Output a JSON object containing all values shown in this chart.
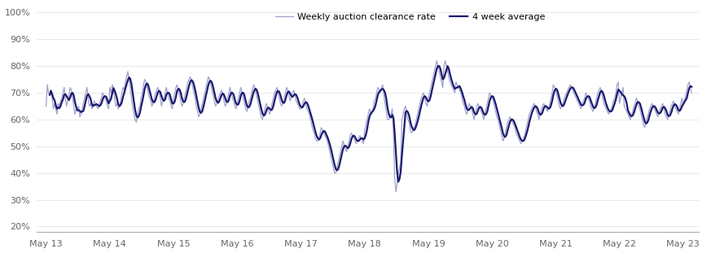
{
  "legend_weekly": "Weekly auction clearance rate",
  "legend_4week": "4 week average",
  "color_weekly": "#a0a0d0",
  "color_4week": "#1a1a6e",
  "lw_weekly": 0.9,
  "lw_4week": 1.6,
  "ylim": [
    0.18,
    1.03
  ],
  "yticks": [
    0.2,
    0.3,
    0.4,
    0.5,
    0.6,
    0.7,
    0.8,
    0.9,
    1.0
  ],
  "background_color": "#ffffff",
  "weekly_data": [
    0.65,
    0.73,
    0.7,
    0.69,
    0.71,
    0.68,
    0.64,
    0.66,
    0.64,
    0.62,
    0.66,
    0.65,
    0.67,
    0.68,
    0.7,
    0.72,
    0.68,
    0.65,
    0.67,
    0.69,
    0.72,
    0.71,
    0.68,
    0.65,
    0.62,
    0.64,
    0.63,
    0.65,
    0.61,
    0.62,
    0.64,
    0.66,
    0.68,
    0.7,
    0.72,
    0.68,
    0.65,
    0.66,
    0.64,
    0.65,
    0.67,
    0.66,
    0.65,
    0.64,
    0.65,
    0.67,
    0.68,
    0.7,
    0.69,
    0.68,
    0.67,
    0.65,
    0.64,
    0.72,
    0.7,
    0.73,
    0.72,
    0.68,
    0.65,
    0.66,
    0.64,
    0.65,
    0.67,
    0.7,
    0.72,
    0.71,
    0.74,
    0.76,
    0.78,
    0.75,
    0.72,
    0.68,
    0.65,
    0.62,
    0.6,
    0.59,
    0.62,
    0.64,
    0.65,
    0.68,
    0.7,
    0.73,
    0.75,
    0.74,
    0.72,
    0.7,
    0.68,
    0.67,
    0.65,
    0.66,
    0.68,
    0.7,
    0.71,
    0.72,
    0.7,
    0.68,
    0.65,
    0.67,
    0.68,
    0.7,
    0.72,
    0.7,
    0.68,
    0.67,
    0.65,
    0.64,
    0.68,
    0.7,
    0.72,
    0.73,
    0.71,
    0.69,
    0.67,
    0.65,
    0.66,
    0.68,
    0.7,
    0.72,
    0.74,
    0.75,
    0.76,
    0.74,
    0.72,
    0.7,
    0.68,
    0.65,
    0.63,
    0.61,
    0.62,
    0.64,
    0.66,
    0.68,
    0.7,
    0.72,
    0.74,
    0.76,
    0.75,
    0.73,
    0.71,
    0.69,
    0.67,
    0.65,
    0.66,
    0.67,
    0.69,
    0.7,
    0.71,
    0.69,
    0.67,
    0.65,
    0.66,
    0.68,
    0.7,
    0.72,
    0.7,
    0.68,
    0.67,
    0.65,
    0.64,
    0.66,
    0.68,
    0.7,
    0.72,
    0.7,
    0.68,
    0.66,
    0.64,
    0.63,
    0.65,
    0.67,
    0.68,
    0.7,
    0.72,
    0.73,
    0.71,
    0.69,
    0.67,
    0.65,
    0.63,
    0.61,
    0.6,
    0.62,
    0.64,
    0.66,
    0.65,
    0.63,
    0.62,
    0.64,
    0.66,
    0.68,
    0.7,
    0.71,
    0.72,
    0.7,
    0.68,
    0.66,
    0.65,
    0.66,
    0.68,
    0.7,
    0.72,
    0.71,
    0.69,
    0.67,
    0.68,
    0.7,
    0.71,
    0.69,
    0.67,
    0.66,
    0.65,
    0.64,
    0.64,
    0.65,
    0.67,
    0.68,
    0.66,
    0.64,
    0.63,
    0.62,
    0.6,
    0.58,
    0.56,
    0.55,
    0.53,
    0.52,
    0.52,
    0.53,
    0.55,
    0.57,
    0.56,
    0.55,
    0.54,
    0.53,
    0.52,
    0.5,
    0.48,
    0.46,
    0.44,
    0.42,
    0.4,
    0.4,
    0.42,
    0.44,
    0.46,
    0.48,
    0.5,
    0.52,
    0.5,
    0.49,
    0.48,
    0.5,
    0.52,
    0.54,
    0.55,
    0.54,
    0.53,
    0.52,
    0.51,
    0.52,
    0.53,
    0.54,
    0.53,
    0.52,
    0.51,
    0.56,
    0.58,
    0.6,
    0.62,
    0.64,
    0.63,
    0.62,
    0.64,
    0.67,
    0.68,
    0.7,
    0.72,
    0.71,
    0.7,
    0.72,
    0.73,
    0.69,
    0.66,
    0.63,
    0.6,
    0.6,
    0.61,
    0.62,
    0.64,
    0.55,
    0.38,
    0.33,
    0.36,
    0.4,
    0.42,
    0.44,
    0.6,
    0.62,
    0.64,
    0.65,
    0.62,
    0.6,
    0.59,
    0.56,
    0.55,
    0.56,
    0.57,
    0.58,
    0.6,
    0.62,
    0.64,
    0.66,
    0.68,
    0.69,
    0.7,
    0.68,
    0.66,
    0.65,
    0.68,
    0.7,
    0.72,
    0.74,
    0.76,
    0.78,
    0.8,
    0.82,
    0.8,
    0.78,
    0.76,
    0.74,
    0.72,
    0.8,
    0.82,
    0.8,
    0.78,
    0.76,
    0.74,
    0.73,
    0.72,
    0.71,
    0.7,
    0.74,
    0.73,
    0.72,
    0.71,
    0.7,
    0.68,
    0.66,
    0.65,
    0.63,
    0.62,
    0.64,
    0.66,
    0.65,
    0.64,
    0.62,
    0.6,
    0.62,
    0.64,
    0.66,
    0.65,
    0.64,
    0.63,
    0.62,
    0.6,
    0.62,
    0.64,
    0.66,
    0.68,
    0.7,
    0.69,
    0.68,
    0.67,
    0.65,
    0.63,
    0.61,
    0.6,
    0.58,
    0.56,
    0.54,
    0.52,
    0.53,
    0.55,
    0.57,
    0.59,
    0.6,
    0.61,
    0.6,
    0.59,
    0.58,
    0.57,
    0.55,
    0.54,
    0.53,
    0.52,
    0.51,
    0.52,
    0.53,
    0.54,
    0.56,
    0.58,
    0.6,
    0.62,
    0.63,
    0.64,
    0.65,
    0.66,
    0.65,
    0.63,
    0.62,
    0.6,
    0.62,
    0.64,
    0.65,
    0.66,
    0.65,
    0.64,
    0.63,
    0.64,
    0.66,
    0.68,
    0.7,
    0.73,
    0.72,
    0.71,
    0.69,
    0.67,
    0.65,
    0.64,
    0.65,
    0.66,
    0.68,
    0.69,
    0.7,
    0.71,
    0.72,
    0.73,
    0.72,
    0.71,
    0.7,
    0.69,
    0.68,
    0.67,
    0.66,
    0.65,
    0.64,
    0.66,
    0.67,
    0.68,
    0.7,
    0.69,
    0.68,
    0.67,
    0.65,
    0.64,
    0.63,
    0.65,
    0.66,
    0.68,
    0.7,
    0.71,
    0.72,
    0.7,
    0.68,
    0.66,
    0.65,
    0.64,
    0.63,
    0.62,
    0.63,
    0.64,
    0.65,
    0.67,
    0.68,
    0.7,
    0.73,
    0.74,
    0.66,
    0.68,
    0.7,
    0.72,
    0.65,
    0.64,
    0.63,
    0.62,
    0.61,
    0.6,
    0.62,
    0.63,
    0.65,
    0.66,
    0.68,
    0.67,
    0.65,
    0.64,
    0.62,
    0.6,
    0.58,
    0.57,
    0.59,
    0.61,
    0.62,
    0.64,
    0.65,
    0.66,
    0.65,
    0.64,
    0.63,
    0.62,
    0.61,
    0.63,
    0.64,
    0.65,
    0.66,
    0.64,
    0.62,
    0.61,
    0.6,
    0.62,
    0.63,
    0.65,
    0.66,
    0.67,
    0.65,
    0.64,
    0.63,
    0.62,
    0.64,
    0.66,
    0.68,
    0.65,
    0.67,
    0.69,
    0.71,
    0.73,
    0.74,
    0.72,
    0.7
  ],
  "x_tick_labels": [
    "May 13",
    "May 14",
    "May 15",
    "May 16",
    "May 17",
    "May 18",
    "May 19",
    "May 20",
    "May 21",
    "May 22",
    "May 23"
  ],
  "x_tick_positions": [
    0,
    53,
    106,
    159,
    212,
    265,
    318,
    371,
    424,
    477,
    530
  ]
}
